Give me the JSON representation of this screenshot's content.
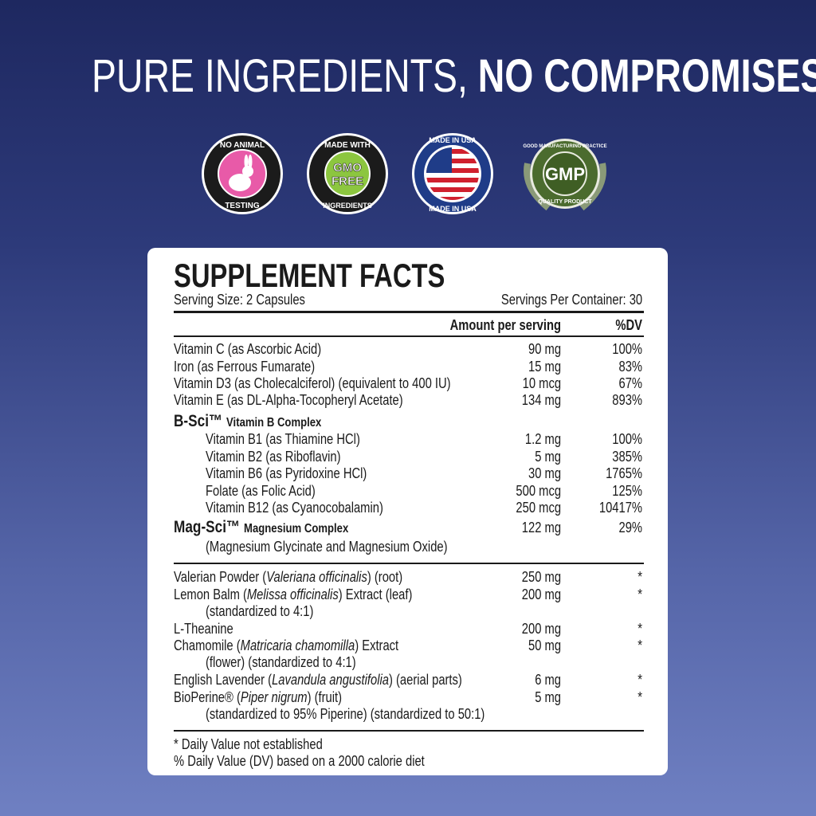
{
  "headline": {
    "light": "PURE INGREDIENTS, ",
    "bold": "NO COMPROMISES"
  },
  "badges": [
    {
      "icon": "rabbit-icon",
      "top": "NO ANIMAL",
      "bottom": "TESTING",
      "color": "#e85aa8"
    },
    {
      "icon": "gmo-free-icon",
      "top": "MADE WITH",
      "center": "GMO FREE",
      "bottom": "INGREDIENTS",
      "color": "#8cc63f"
    },
    {
      "icon": "usa-flag-icon",
      "top": "MADE IN USA",
      "bottom": "MADE IN USA",
      "color": "#1f3c88"
    },
    {
      "icon": "gmp-laurel-icon",
      "top": "GOOD MANUFACTURING PRACTICE",
      "center": "GMP",
      "bottom": "QUALITY PRODUCT",
      "color": "#4b6b2e"
    }
  ],
  "facts": {
    "title": "SUPPLEMENT FACTS",
    "serving_size": "Serving Size: 2 Capsules",
    "servings_per_container": "Servings Per Container: 30",
    "col_amount": "Amount per serving",
    "col_dv": "%DV",
    "rows": [
      {
        "name": "Vitamin C (as Ascorbic Acid)",
        "amount": "90 mg",
        "dv": "100%"
      },
      {
        "name": "Iron (as Ferrous Fumarate)",
        "amount": "15 mg",
        "dv": "83%"
      },
      {
        "name": "Vitamin D3 (as Cholecalciferol) (equivalent to 400 IU)",
        "amount": "10 mcg",
        "dv": "67%"
      },
      {
        "name": "Vitamin E (as DL-Alpha-Tocopheryl Acetate)",
        "amount": "134 mg",
        "dv": "893%"
      },
      {
        "group": "B-Sci™",
        "group_sub": "Vitamin B Complex"
      },
      {
        "name": "Vitamin B1 (as Thiamine HCl)",
        "amount": "1.2 mg",
        "dv": "100%",
        "indent": true
      },
      {
        "name": "Vitamin B2 (as Riboflavin)",
        "amount": "5 mg",
        "dv": "385%",
        "indent": true
      },
      {
        "name": "Vitamin B6 (as Pyridoxine HCl)",
        "amount": "30 mg",
        "dv": "1765%",
        "indent": true
      },
      {
        "name": "Folate (as Folic Acid)",
        "amount": "500 mcg",
        "dv": "125%",
        "indent": true
      },
      {
        "name": "Vitamin B12 (as Cyanocobalamin)",
        "amount": "250 mcg",
        "dv": "10417%",
        "indent": true
      },
      {
        "group": "Mag-Sci™",
        "group_sub": "Magnesium Complex",
        "amount": "122 mg",
        "dv": "29%"
      },
      {
        "name": "(Magnesium Glycinate and Magnesium Oxide)",
        "indent": true
      },
      {
        "name": "Valerian Powder (",
        "latin": "Valeriana officinalis",
        "after": ") (root)",
        "amount": "250 mg",
        "dv": "*"
      },
      {
        "name": "Lemon Balm (",
        "latin": "Melissa officinalis",
        "after": ") Extract (leaf)",
        "amount": "200 mg",
        "dv": "*"
      },
      {
        "name": "(standardized to 4:1)",
        "indent": true
      },
      {
        "name": "L-Theanine",
        "amount": "200 mg",
        "dv": "*"
      },
      {
        "name": "Chamomile (",
        "latin": "Matricaria chamomilla",
        "after": ") Extract",
        "amount": "50 mg",
        "dv": "*"
      },
      {
        "name": "(flower) (standardized to 4:1)",
        "indent": true
      },
      {
        "name": "English Lavender (",
        "latin": "Lavandula angustifolia",
        "after": ") (aerial parts)",
        "amount": "6 mg",
        "dv": "*"
      },
      {
        "name": "BioPerine® (",
        "latin": "Piper nigrum",
        "after": ") (fruit)",
        "amount": "5 mg",
        "dv": "*"
      },
      {
        "name": "(standardized to 95% Piperine) (standardized to 50:1)",
        "indent": true
      }
    ],
    "footnotes": [
      "*  Daily Value not established",
      "%  Daily Value (DV) based on a 2000 calorie diet"
    ]
  }
}
